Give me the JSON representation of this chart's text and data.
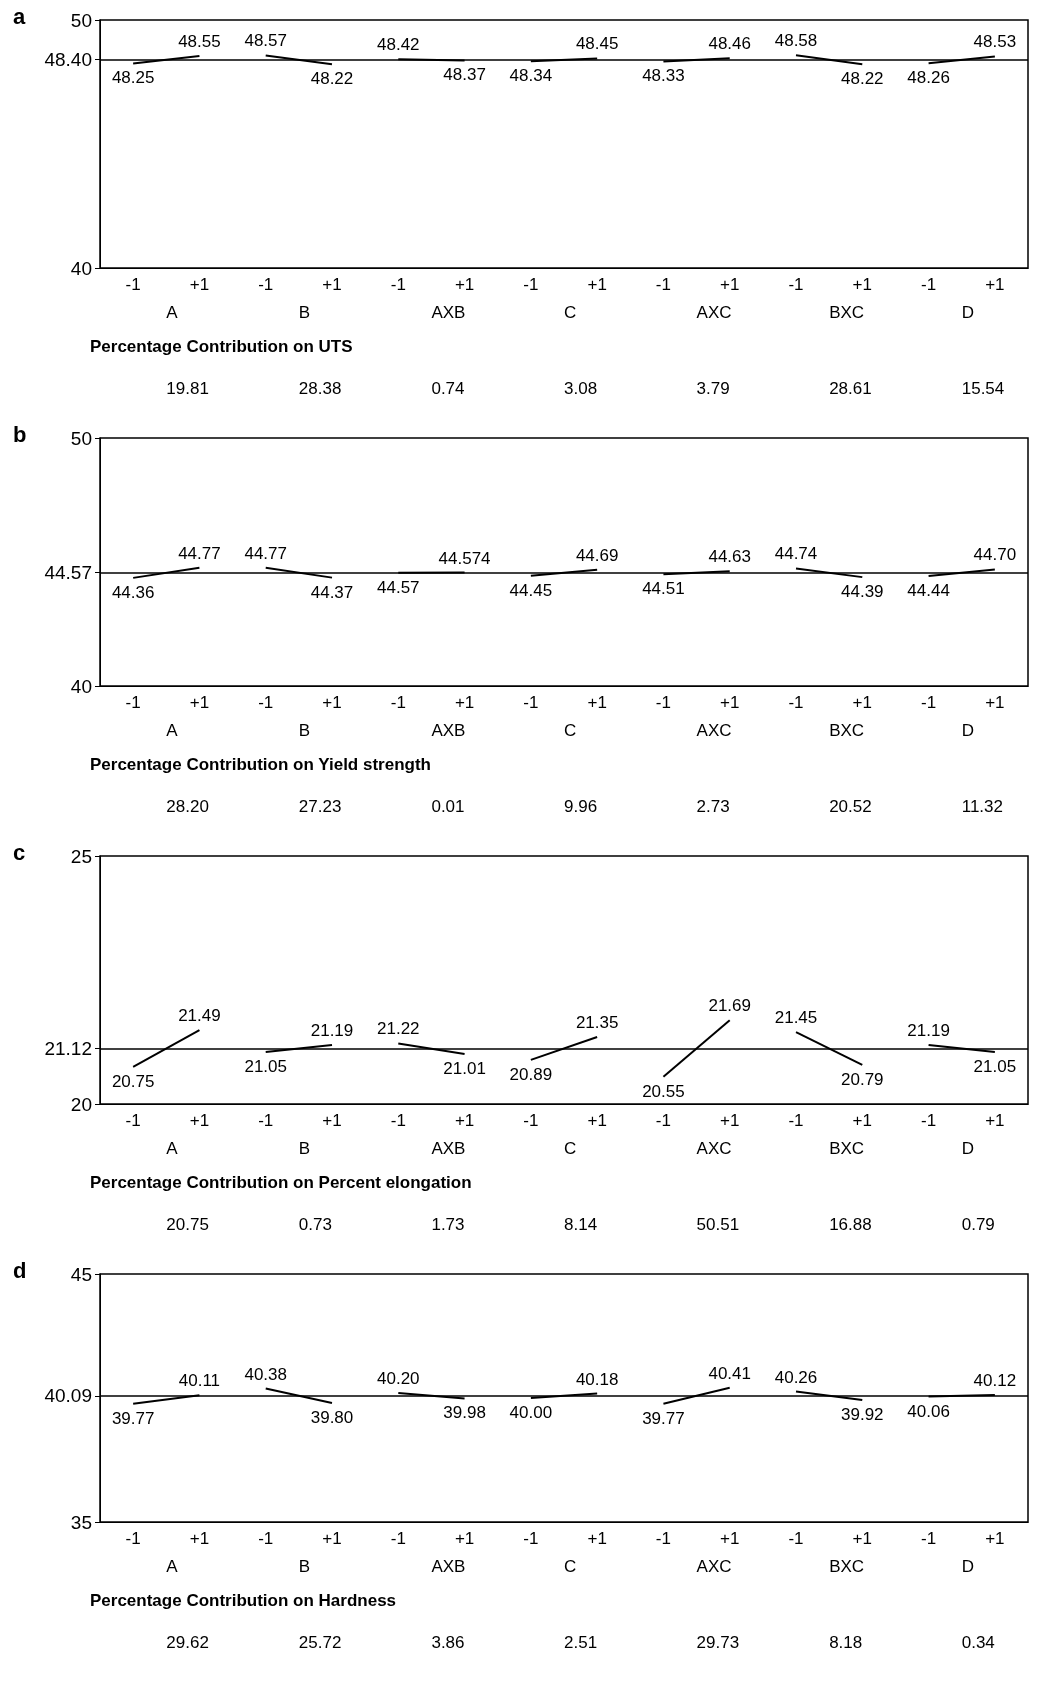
{
  "chart_data": [
    {
      "type": "line",
      "title": "a",
      "categories": [
        "-1",
        "+1",
        "-1",
        "+1",
        "-1",
        "+1",
        "-1",
        "+1",
        "-1",
        "+1",
        "-1",
        "+1",
        "-1",
        "+1"
      ],
      "series": [
        {
          "color": "#000000",
          "values": [
            48.25,
            48.55,
            null,
            null,
            null,
            null,
            null,
            null,
            null,
            null,
            null,
            null,
            null,
            null
          ]
        },
        {
          "color": "#000000",
          "values": [
            null,
            null,
            48.57,
            48.22,
            null,
            null,
            null,
            null,
            null,
            null,
            null,
            null,
            null,
            null
          ]
        },
        {
          "color": "#000000",
          "values": [
            null,
            null,
            null,
            null,
            48.42,
            48.37,
            null,
            null,
            null,
            null,
            null,
            null,
            null,
            null
          ]
        },
        {
          "color": "#000000",
          "values": [
            null,
            null,
            null,
            null,
            null,
            null,
            48.34,
            48.45,
            null,
            null,
            null,
            null,
            null,
            null
          ]
        },
        {
          "color": "#000000",
          "values": [
            null,
            null,
            null,
            null,
            null,
            null,
            null,
            null,
            48.33,
            48.46,
            null,
            null,
            null,
            null
          ]
        },
        {
          "color": "#000000",
          "values": [
            null,
            null,
            null,
            null,
            null,
            null,
            null,
            null,
            null,
            null,
            48.58,
            48.22,
            null,
            null
          ]
        },
        {
          "color": "#000000",
          "values": [
            null,
            null,
            null,
            null,
            null,
            null,
            null,
            null,
            null,
            null,
            null,
            null,
            48.26,
            48.53
          ]
        }
      ],
      "ylim": [
        40,
        50
      ],
      "yticks": [
        40,
        {
          "value": 48.4,
          "label": "48.40"
        },
        50
      ],
      "ref_lines": [
        {
          "axis": "y",
          "value": 48.4
        }
      ],
      "data_labels": true,
      "grid": false,
      "marker": "none",
      "annotations": [
        "A",
        "B",
        "AXB",
        "C",
        "AXC",
        "BXC",
        "D",
        "Percentage Contribution on UTS",
        "19.81",
        "28.38",
        "0.74",
        "3.08",
        "3.79",
        "28.61",
        "15.54"
      ]
    },
    {
      "type": "line",
      "title": "b",
      "categories": [
        "-1",
        "+1",
        "-1",
        "+1",
        "-1",
        "+1",
        "-1",
        "+1",
        "-1",
        "+1",
        "-1",
        "+1",
        "-1",
        "+1"
      ],
      "series": [
        {
          "color": "#000000",
          "values": [
            44.36,
            44.77,
            null,
            null,
            null,
            null,
            null,
            null,
            null,
            null,
            null,
            null,
            null,
            null
          ]
        },
        {
          "color": "#000000",
          "values": [
            null,
            null,
            44.77,
            44.37,
            null,
            null,
            null,
            null,
            null,
            null,
            null,
            null,
            null,
            null
          ]
        },
        {
          "color": "#000000",
          "values": [
            null,
            null,
            null,
            null,
            44.57,
            44.574,
            null,
            null,
            null,
            null,
            null,
            null,
            null,
            null
          ]
        },
        {
          "color": "#000000",
          "values": [
            null,
            null,
            null,
            null,
            null,
            null,
            44.45,
            44.69,
            null,
            null,
            null,
            null,
            null,
            null
          ]
        },
        {
          "color": "#000000",
          "values": [
            null,
            null,
            null,
            null,
            null,
            null,
            null,
            null,
            44.51,
            44.63,
            null,
            null,
            null,
            null
          ]
        },
        {
          "color": "#000000",
          "values": [
            null,
            null,
            null,
            null,
            null,
            null,
            null,
            null,
            null,
            null,
            44.74,
            44.39,
            null,
            null
          ]
        },
        {
          "color": "#000000",
          "values": [
            null,
            null,
            null,
            null,
            null,
            null,
            null,
            null,
            null,
            null,
            null,
            null,
            44.44,
            44.7
          ],
          "value_labels": [
            null,
            null,
            null,
            null,
            null,
            null,
            null,
            null,
            null,
            null,
            null,
            null,
            "44.44",
            "44.70"
          ]
        }
      ],
      "ylim": [
        40,
        50
      ],
      "yticks": [
        40,
        44.57,
        50
      ],
      "ref_lines": [
        {
          "axis": "y",
          "value": 44.57
        }
      ],
      "data_labels": true,
      "grid": false,
      "marker": "none",
      "annotations": [
        "A",
        "B",
        "AXB",
        "C",
        "AXC",
        "BXC",
        "D",
        "Percentage Contribution on Yield strength",
        "28.20",
        "27.23",
        "0.01",
        "9.96",
        "2.73",
        "20.52",
        "11.32"
      ]
    },
    {
      "type": "line",
      "title": "c",
      "categories": [
        "-1",
        "+1",
        "-1",
        "+1",
        "-1",
        "+1",
        "-1",
        "+1",
        "-1",
        "+1",
        "-1",
        "+1",
        "-1",
        "+1"
      ],
      "series": [
        {
          "color": "#000000",
          "values": [
            20.75,
            21.49,
            null,
            null,
            null,
            null,
            null,
            null,
            null,
            null,
            null,
            null,
            null,
            null
          ]
        },
        {
          "color": "#000000",
          "values": [
            null,
            null,
            21.05,
            21.19,
            null,
            null,
            null,
            null,
            null,
            null,
            null,
            null,
            null,
            null
          ]
        },
        {
          "color": "#000000",
          "values": [
            null,
            null,
            null,
            null,
            21.22,
            21.01,
            null,
            null,
            null,
            null,
            null,
            null,
            null,
            null
          ]
        },
        {
          "color": "#000000",
          "values": [
            null,
            null,
            null,
            null,
            null,
            null,
            20.89,
            21.35,
            null,
            null,
            null,
            null,
            null,
            null
          ]
        },
        {
          "color": "#000000",
          "values": [
            null,
            null,
            null,
            null,
            null,
            null,
            null,
            null,
            20.55,
            21.69,
            null,
            null,
            null,
            null
          ]
        },
        {
          "color": "#000000",
          "values": [
            null,
            null,
            null,
            null,
            null,
            null,
            null,
            null,
            null,
            null,
            21.45,
            20.79,
            null,
            null
          ]
        },
        {
          "color": "#000000",
          "values": [
            null,
            null,
            null,
            null,
            null,
            null,
            null,
            null,
            null,
            null,
            null,
            null,
            21.19,
            21.05
          ]
        }
      ],
      "ylim": [
        20,
        25
      ],
      "yticks": [
        20,
        21.12,
        25
      ],
      "ref_lines": [
        {
          "axis": "y",
          "value": 21.12
        }
      ],
      "data_labels": true,
      "grid": false,
      "marker": "none",
      "annotations": [
        "A",
        "B",
        "AXB",
        "C",
        "AXC",
        "BXC",
        "D",
        "Percentage Contribution on Percent elongation",
        "20.75",
        "0.73",
        "1.73",
        "8.14",
        "50.51",
        "16.88",
        "0.79"
      ]
    },
    {
      "type": "line",
      "title": "d",
      "categories": [
        "-1",
        "+1",
        "-1",
        "+1",
        "-1",
        "+1",
        "-1",
        "+1",
        "-1",
        "+1",
        "-1",
        "+1",
        "-1",
        "+1"
      ],
      "series": [
        {
          "color": "#000000",
          "values": [
            39.77,
            40.11,
            null,
            null,
            null,
            null,
            null,
            null,
            null,
            null,
            null,
            null,
            null,
            null
          ]
        },
        {
          "color": "#000000",
          "values": [
            null,
            null,
            40.38,
            39.8,
            null,
            null,
            null,
            null,
            null,
            null,
            null,
            null,
            null,
            null
          ],
          "value_labels": [
            null,
            null,
            "40.38",
            "39.80",
            null,
            null,
            null,
            null,
            null,
            null,
            null,
            null,
            null,
            null
          ]
        },
        {
          "color": "#000000",
          "values": [
            null,
            null,
            null,
            null,
            40.2,
            39.98,
            null,
            null,
            null,
            null,
            null,
            null,
            null,
            null
          ],
          "value_labels": [
            null,
            null,
            null,
            null,
            "40.20",
            "39.98",
            null,
            null,
            null,
            null,
            null,
            null,
            null,
            null
          ]
        },
        {
          "color": "#000000",
          "values": [
            null,
            null,
            null,
            null,
            null,
            null,
            40.0,
            40.18,
            null,
            null,
            null,
            null,
            null,
            null
          ],
          "value_labels": [
            null,
            null,
            null,
            null,
            null,
            null,
            "40.00",
            "40.18",
            null,
            null,
            null,
            null,
            null,
            null
          ]
        },
        {
          "color": "#000000",
          "values": [
            null,
            null,
            null,
            null,
            null,
            null,
            null,
            null,
            39.77,
            40.41,
            null,
            null,
            null,
            null
          ]
        },
        {
          "color": "#000000",
          "values": [
            null,
            null,
            null,
            null,
            null,
            null,
            null,
            null,
            null,
            null,
            40.26,
            39.92,
            null,
            null
          ]
        },
        {
          "color": "#000000",
          "values": [
            null,
            null,
            null,
            null,
            null,
            null,
            null,
            null,
            null,
            null,
            null,
            null,
            40.06,
            40.12
          ]
        }
      ],
      "ylim": [
        35,
        45
      ],
      "yticks": [
        35,
        40.09,
        45
      ],
      "ref_lines": [
        {
          "axis": "y",
          "value": 40.09
        }
      ],
      "data_labels": true,
      "grid": false,
      "marker": "none",
      "annotations": [
        "A",
        "B",
        "AXB",
        "C",
        "AXC",
        "BXC",
        "D",
        "Percentage Contribution on Hardness",
        "29.62",
        "25.72",
        "3.86",
        "2.51",
        "29.73",
        "8.18",
        "0.34"
      ]
    }
  ]
}
